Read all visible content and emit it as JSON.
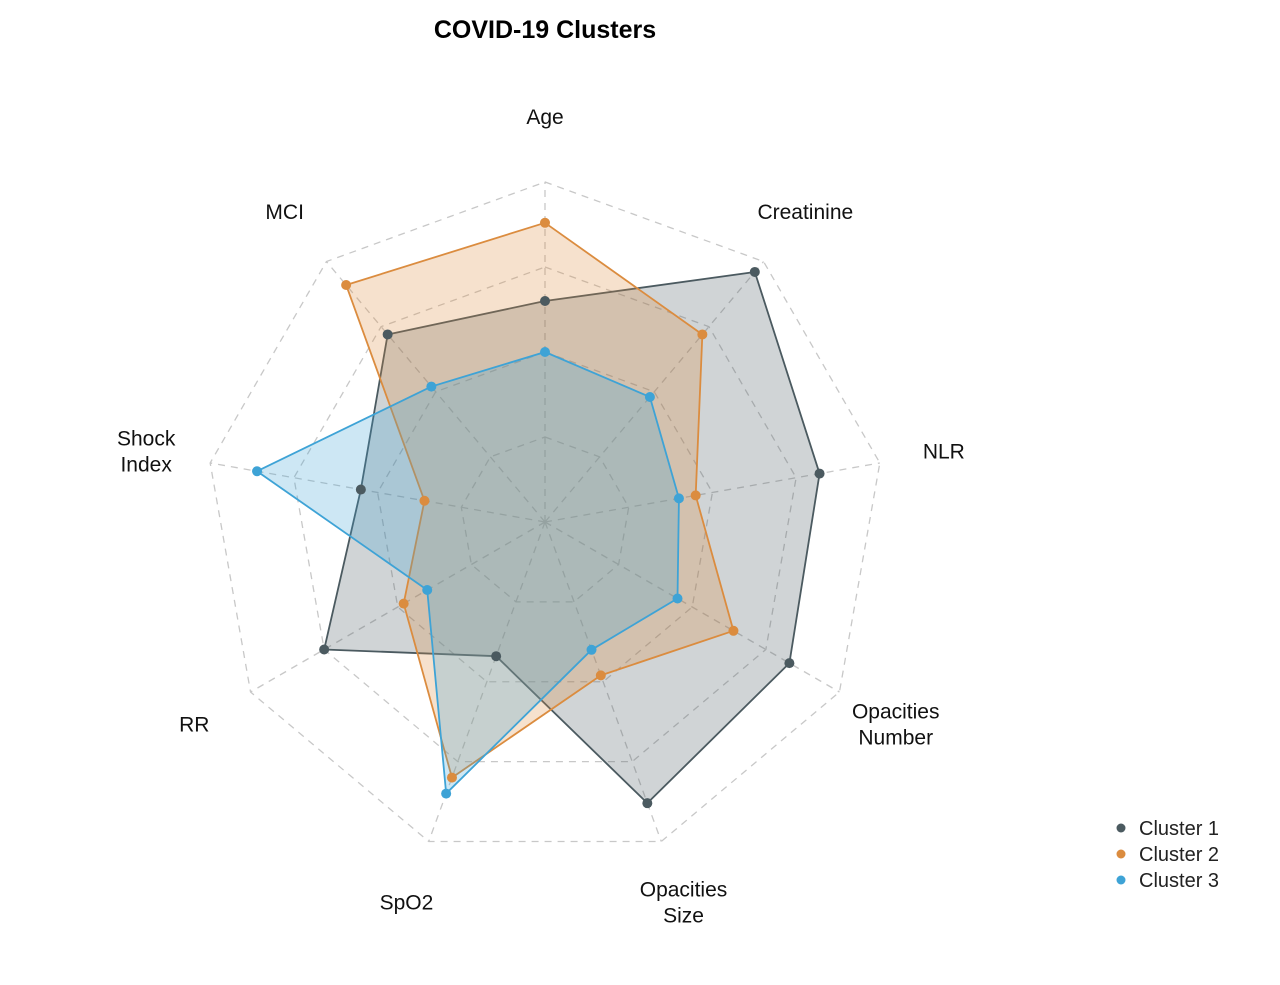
{
  "chart_data": {
    "type": "radar",
    "title": "COVID-19 Clusters",
    "axes": [
      "Age",
      "Creatinine",
      "NLR",
      "Opacities Number",
      "Opacities Size",
      "SpO2",
      "RR",
      "Shock Index",
      "MCI"
    ],
    "axis_label_lines": [
      [
        "Age"
      ],
      [
        "Creatinine"
      ],
      [
        "NLR"
      ],
      [
        "Opacities",
        "Number"
      ],
      [
        "Opacities",
        "Size"
      ],
      [
        "SpO2"
      ],
      [
        "RR"
      ],
      [
        "Shock",
        "Index"
      ],
      [
        "MCI"
      ]
    ],
    "range": [
      0,
      1
    ],
    "grid_levels": 4,
    "grid": true,
    "legend_position": "bottom-right",
    "series": [
      {
        "name": "Cluster 1",
        "color": "#4b5a60",
        "values": [
          0.65,
          0.96,
          0.82,
          0.83,
          0.88,
          0.42,
          0.75,
          0.55,
          0.72
        ]
      },
      {
        "name": "Cluster 2",
        "color": "#db8c3f",
        "values": [
          0.88,
          0.72,
          0.45,
          0.64,
          0.48,
          0.8,
          0.48,
          0.36,
          0.91
        ]
      },
      {
        "name": "Cluster 3",
        "color": "#3ea3d6",
        "values": [
          0.5,
          0.48,
          0.4,
          0.45,
          0.4,
          0.85,
          0.4,
          0.86,
          0.52
        ]
      }
    ]
  }
}
